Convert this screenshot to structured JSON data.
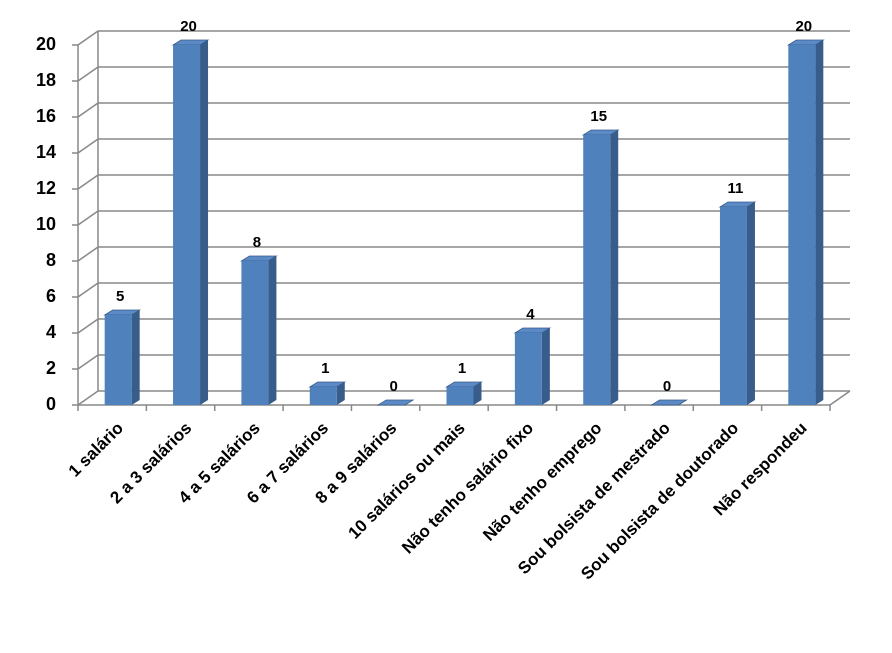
{
  "chart_data": {
    "type": "bar",
    "categories": [
      "1 salário",
      "2 a 3 salários",
      "4 a 5 salários",
      "6 a 7 salários",
      "8 a 9 salários",
      "10 salários ou mais",
      "Não tenho salário fixo",
      "Não tenho emprego",
      "Sou bolsista de mestrado",
      "Sou bolsista de doutorado",
      "Não respondeu"
    ],
    "values": [
      5,
      20,
      8,
      1,
      0,
      1,
      4,
      15,
      0,
      11,
      20
    ],
    "color": "#4f81bd",
    "ylim": [
      0,
      20
    ],
    "yticks": [
      0,
      2,
      4,
      6,
      8,
      10,
      12,
      14,
      16,
      18,
      20
    ],
    "grid": true
  }
}
